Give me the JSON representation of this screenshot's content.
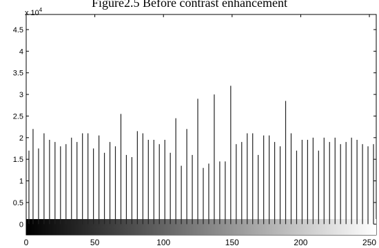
{
  "caption": "Figure2.5  Before contrast enhancement",
  "chart_data": {
    "type": "bar",
    "title": "",
    "xlabel": "",
    "ylabel": "",
    "y_multiplier_label": "x 10",
    "y_multiplier_exponent": "4",
    "xlim": [
      0,
      255
    ],
    "ylim": [
      -0.25,
      4.85
    ],
    "y_scale_factor": 10000,
    "grid": false,
    "colorbar": "grayscale 0-255",
    "xticks": [
      0,
      50,
      100,
      150,
      200,
      250
    ],
    "xtick_labels": [
      "0",
      "50",
      "100",
      "150",
      "200",
      "250"
    ],
    "yticks": [
      0,
      0.5,
      1,
      1.5,
      2,
      2.5,
      3,
      3.5,
      4,
      4.5
    ],
    "ytick_labels": [
      "0",
      "0.5",
      "1",
      "1.5",
      "2",
      "2.5",
      "3",
      "3.5",
      "4",
      "4.5"
    ],
    "x": [
      2,
      5,
      9,
      13,
      17,
      21,
      25,
      29,
      33,
      37,
      41,
      45,
      49,
      53,
      57,
      61,
      65,
      69,
      73,
      77,
      81,
      85,
      89,
      93,
      97,
      101,
      105,
      109,
      113,
      117,
      121,
      125,
      129,
      133,
      137,
      141,
      145,
      149,
      153,
      157,
      161,
      165,
      169,
      173,
      177,
      181,
      185,
      189,
      193,
      197,
      201,
      205,
      209,
      213,
      217,
      221,
      225,
      229,
      233,
      237,
      241,
      245,
      249,
      253
    ],
    "values": [
      1.7,
      2.2,
      1.75,
      2.1,
      1.95,
      1.9,
      1.8,
      1.85,
      2.0,
      1.9,
      2.1,
      2.1,
      1.75,
      2.05,
      1.65,
      1.9,
      1.8,
      2.55,
      1.6,
      1.55,
      2.15,
      2.1,
      1.95,
      1.95,
      1.85,
      1.95,
      1.65,
      2.45,
      1.35,
      2.2,
      1.6,
      2.9,
      1.3,
      1.4,
      3.0,
      1.45,
      1.45,
      3.2,
      1.85,
      1.9,
      2.1,
      2.1,
      1.6,
      2.05,
      2.05,
      1.9,
      1.8,
      2.85,
      2.1,
      1.7,
      1.95,
      1.95,
      2.0,
      1.7,
      2.0,
      1.9,
      2.0,
      1.85,
      1.9,
      2.0,
      1.95,
      1.85,
      1.8,
      1.85
    ]
  }
}
